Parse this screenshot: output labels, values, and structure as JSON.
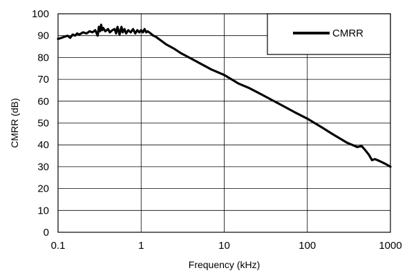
{
  "chart_data": {
    "type": "line",
    "xlabel": "Frequency (kHz)",
    "ylabel": "CMRR (dB)",
    "x_scale": "log",
    "xlim": [
      0.1,
      1000
    ],
    "ylim": [
      0,
      100
    ],
    "x_ticks": [
      "0.1",
      "1",
      "10",
      "100",
      "1000"
    ],
    "x_tick_values": [
      0.1,
      1,
      10,
      100,
      1000
    ],
    "y_ticks": [
      "0",
      "10",
      "20",
      "30",
      "40",
      "50",
      "60",
      "70",
      "80",
      "90",
      "100"
    ],
    "y_tick_values": [
      0,
      10,
      20,
      30,
      40,
      50,
      60,
      70,
      80,
      90,
      100
    ],
    "grid": true,
    "legend_position": "top-right",
    "series": [
      {
        "name": "CMRR",
        "color": "#000000",
        "x": [
          0.1,
          0.11,
          0.12,
          0.13,
          0.14,
          0.15,
          0.16,
          0.17,
          0.18,
          0.2,
          0.22,
          0.24,
          0.26,
          0.28,
          0.3,
          0.31,
          0.32,
          0.33,
          0.34,
          0.35,
          0.37,
          0.4,
          0.42,
          0.45,
          0.48,
          0.5,
          0.52,
          0.55,
          0.58,
          0.6,
          0.63,
          0.66,
          0.7,
          0.75,
          0.8,
          0.85,
          0.9,
          0.95,
          1.0,
          1.05,
          1.1,
          1.15,
          1.2,
          1.3,
          1.4,
          1.5,
          1.7,
          2.0,
          2.5,
          3.0,
          4.0,
          5.0,
          7.0,
          10,
          15,
          20,
          30,
          50,
          70,
          100,
          150,
          200,
          300,
          400,
          450,
          500,
          550,
          600,
          650,
          700,
          800,
          900,
          1000
        ],
        "y": [
          88.5,
          89,
          89.5,
          90,
          89,
          90.5,
          90,
          91,
          90.5,
          91.5,
          91,
          92,
          91.5,
          92.5,
          90,
          94,
          92,
          95,
          92.5,
          93.5,
          92,
          93,
          91.5,
          92.5,
          93,
          91,
          94,
          90.5,
          94,
          91.5,
          93,
          91,
          92.5,
          91.5,
          93,
          91,
          92.5,
          91.5,
          92.5,
          91.5,
          93,
          91.5,
          92,
          91,
          90,
          89.5,
          88,
          86,
          84,
          82,
          79.5,
          77.5,
          74.5,
          72,
          68,
          66,
          62.5,
          58,
          55,
          52,
          48,
          45,
          41,
          39,
          39.5,
          37.5,
          35.5,
          33,
          33.5,
          33,
          32,
          31,
          30
        ]
      }
    ]
  }
}
